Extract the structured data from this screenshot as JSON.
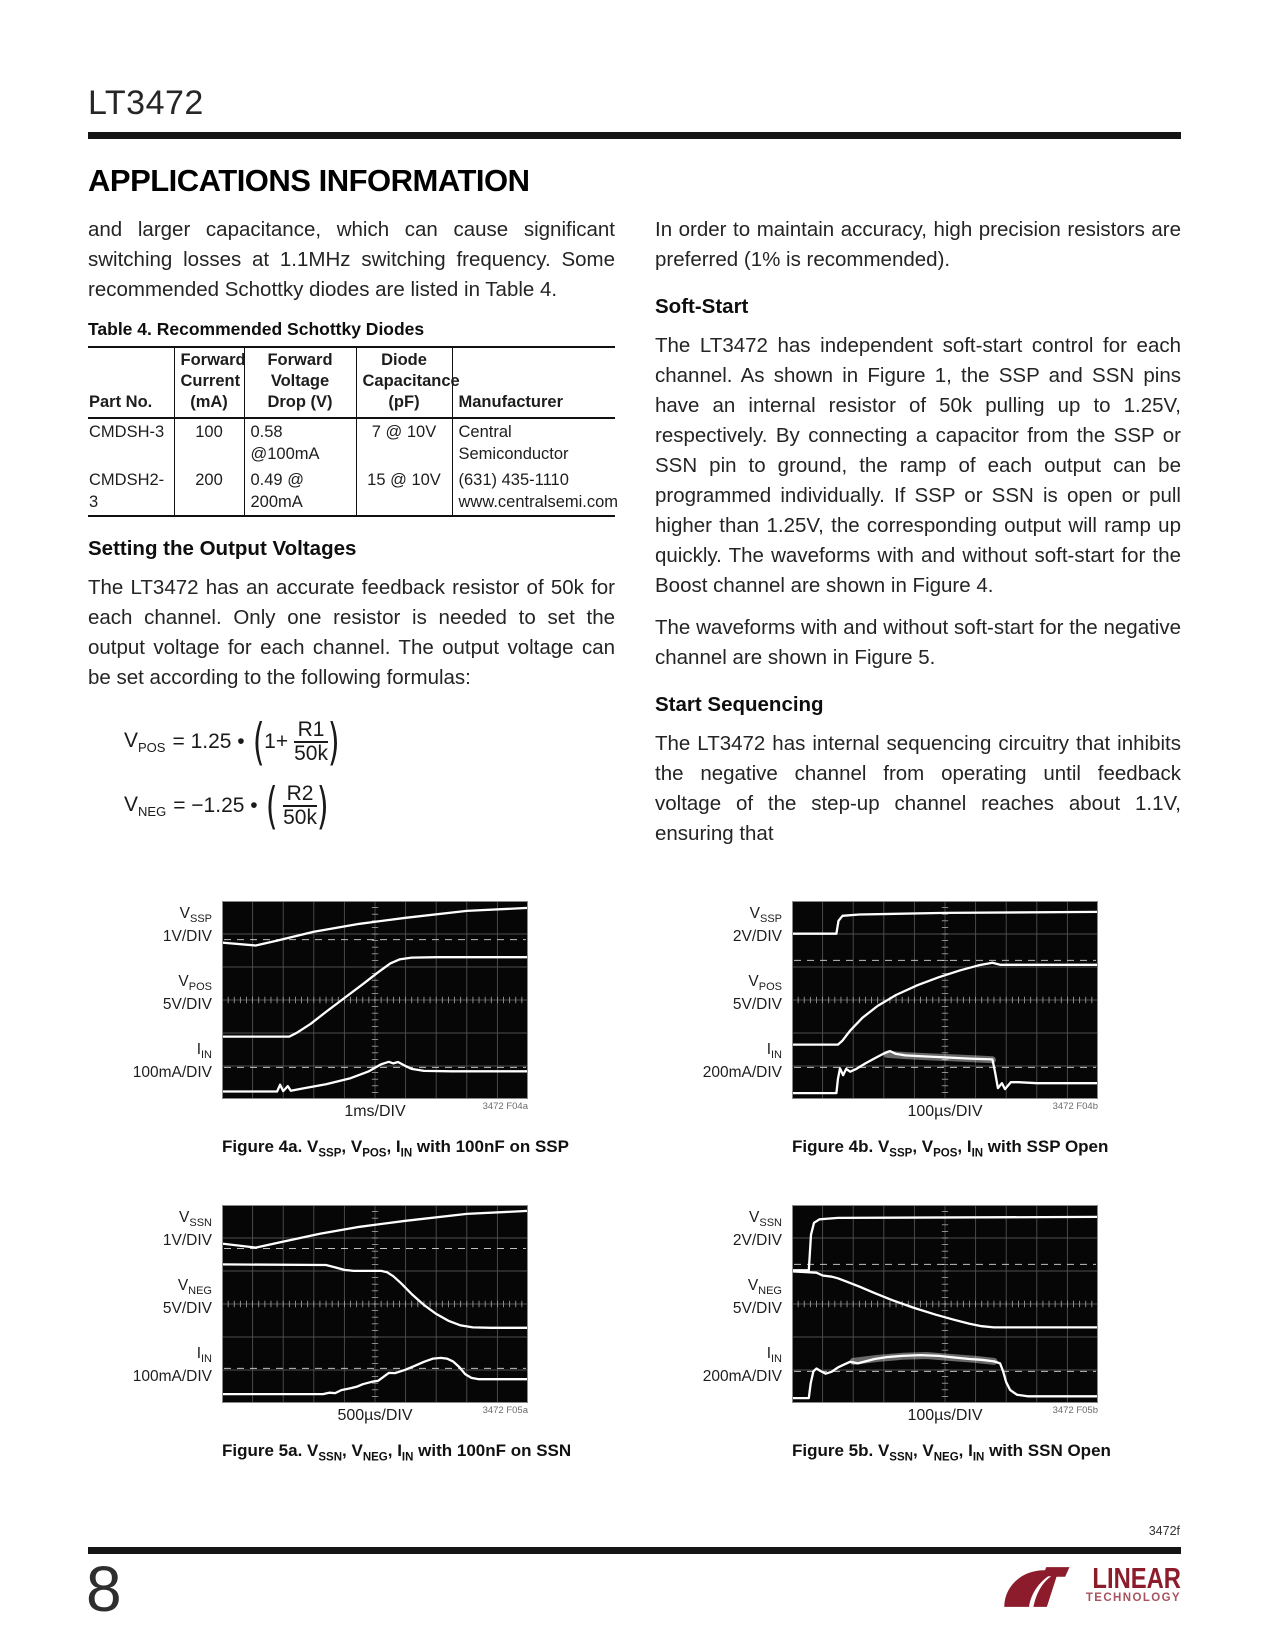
{
  "page": {
    "part_number": "LT3472",
    "section_title": "APPLICATIONS INFORMATION",
    "page_number": "8",
    "doc_code": "3472f",
    "logo": {
      "brand": "LINEAR",
      "sub": "TECHNOLOGY",
      "color": "#8c1c2c"
    }
  },
  "left_column": {
    "para1": "and larger capacitance, which can cause significant switching losses at 1.1MHz switching frequency. Some recommended Schottky diodes are listed in Table 4.",
    "table": {
      "title": "Table 4. Recommended Schottky Diodes",
      "headers": [
        "Part No.",
        "Forward\nCurrent\n(mA)",
        "Forward\nVoltage\nDrop (V)",
        "Diode\nCapacitance\n(pF)",
        "Manufacturer"
      ],
      "rows": [
        [
          "CMDSH-3",
          "100",
          "0.58 @100mA",
          "7 @ 10V",
          "Central Semiconductor"
        ],
        [
          "CMDSH2-3",
          "200",
          "0.49 @ 200mA",
          "15 @ 10V",
          "(631) 435-1110\nwww.centralsemi.com"
        ]
      ]
    },
    "heading2": "Setting the Output Voltages",
    "para2": "The LT3472 has an accurate feedback resistor of 50k for each channel. Only one resistor is needed to set the output voltage for each channel. The output voltage can be set according to the following formulas:",
    "formulas": {
      "vpos": {
        "base": "V",
        "sub": "POS",
        "mid": "= 1.25 •",
        "inner_pre": "1+",
        "num": "R1",
        "den": "50k"
      },
      "vneg": {
        "base": "V",
        "sub": "NEG",
        "mid": "= −1.25 •",
        "inner_pre": "",
        "num": "R2",
        "den": "50k"
      }
    }
  },
  "right_column": {
    "para1": "In order to maintain accuracy, high precision resistors are preferred (1% is recommended).",
    "heading1": "Soft-Start",
    "para2": "The LT3472 has independent soft-start control for each channel. As shown in Figure 1, the SSP and SSN pins have an internal resistor of 50k pulling up to 1.25V, respectively. By connecting a capacitor from the SSP or SSN pin to ground, the ramp of each output can be programmed individually. If SSP or SSN is open or pull higher than 1.25V, the corresponding output will ramp up quickly. The waveforms with and without soft-start for the Boost channel are shown in Figure 4.",
    "para3": "The waveforms with and without soft-start for the negative channel are shown in Figure 5.",
    "heading2": "Start Sequencing",
    "para4": "The LT3472 has internal sequencing circuitry that inhibits the negative channel from operating until feedback voltage of the step-up channel reaches about 1.1V, ensuring that"
  },
  "figures": [
    {
      "id": "4a",
      "tag": "3472 F04a",
      "caption": [
        {
          "t": "Figure 4a. V"
        },
        {
          "sub": "SSP"
        },
        {
          "t": ", V"
        },
        {
          "sub": "POS"
        },
        {
          "t": ", I"
        },
        {
          "sub": "IN"
        },
        {
          "t": " with 100nF on SSP"
        }
      ]
    },
    {
      "id": "4b",
      "tag": "3472 F04b",
      "caption": [
        {
          "t": "Figure 4b. V"
        },
        {
          "sub": "SSP"
        },
        {
          "t": ", V"
        },
        {
          "sub": "POS"
        },
        {
          "t": ", I"
        },
        {
          "sub": "IN"
        },
        {
          "t": " with SSP Open"
        }
      ]
    },
    {
      "id": "5a",
      "tag": "3472 F05a",
      "caption": [
        {
          "t": "Figure 5a. V"
        },
        {
          "sub": "SSN"
        },
        {
          "t": ", V"
        },
        {
          "sub": "NEG"
        },
        {
          "t": ", I"
        },
        {
          "sub": "IN"
        },
        {
          "t": " with 100nF on SSN"
        }
      ]
    },
    {
      "id": "5b",
      "tag": "3472 F05b",
      "caption": [
        {
          "t": "Figure 5b. V"
        },
        {
          "sub": "SSN"
        },
        {
          "t": ", V"
        },
        {
          "sub": "NEG"
        },
        {
          "t": ", I"
        },
        {
          "sub": "IN"
        },
        {
          "t": " with SSN Open"
        }
      ]
    }
  ],
  "chart_data": [
    {
      "id": "4a",
      "type": "line",
      "x_label": "1ms/DIV",
      "dashed_refs": [
        19.5,
        84
      ],
      "series": [
        {
          "base": "V",
          "sub": "SSP",
          "scale": "1V/DIV",
          "points": [
            [
              0,
              21
            ],
            [
              11,
              22.5
            ],
            [
              18,
              20
            ],
            [
              30,
              15.5
            ],
            [
              45,
              11.5
            ],
            [
              60,
              8.5
            ],
            [
              80,
              5
            ],
            [
              100,
              3.5
            ]
          ]
        },
        {
          "base": "V",
          "sub": "POS",
          "scale": "5V/DIV",
          "points": [
            [
              0,
              68.5
            ],
            [
              22,
              68.5
            ],
            [
              24.5,
              66.5
            ],
            [
              29,
              62
            ],
            [
              34,
              56
            ],
            [
              40,
              49
            ],
            [
              46,
              42
            ],
            [
              51,
              36
            ],
            [
              55,
              31.5
            ],
            [
              58,
              29.5
            ],
            [
              62,
              28.6
            ],
            [
              70,
              28.4
            ],
            [
              100,
              28.4
            ]
          ]
        },
        {
          "base": "I",
          "sub": "IN",
          "scale": "100mA/DIV",
          "points": [
            [
              0,
              96.2
            ],
            [
              18,
              96.2
            ],
            [
              19,
              92.8
            ],
            [
              20,
              96
            ],
            [
              21.5,
              93.5
            ],
            [
              22.5,
              95.8
            ],
            [
              27,
              94.5
            ],
            [
              34,
              92.5
            ],
            [
              42,
              89.5
            ],
            [
              48,
              86
            ],
            [
              52,
              82.5
            ],
            [
              54.5,
              81.2
            ],
            [
              56,
              82
            ],
            [
              57.5,
              81.3
            ],
            [
              59.5,
              83
            ],
            [
              62,
              84.8
            ],
            [
              66,
              85.8
            ],
            [
              75,
              86
            ],
            [
              100,
              86
            ]
          ]
        }
      ]
    },
    {
      "id": "4b",
      "type": "line",
      "x_label": "100µs/DIV",
      "dashed_refs": [
        30,
        84
      ],
      "series": [
        {
          "base": "V",
          "sub": "SSP",
          "scale": "2V/DIV",
          "points": [
            [
              0,
              16.5
            ],
            [
              14.5,
              16.5
            ],
            [
              15.2,
              10
            ],
            [
              16.5,
              7.5
            ],
            [
              22,
              6.8
            ],
            [
              50,
              6
            ],
            [
              100,
              5.5
            ]
          ]
        },
        {
          "base": "V",
          "sub": "POS",
          "scale": "5V/DIV",
          "points": [
            [
              0,
              72.5
            ],
            [
              15,
              72.5
            ],
            [
              16.5,
              70.5
            ],
            [
              19,
              65.5
            ],
            [
              23,
              59
            ],
            [
              28,
              53
            ],
            [
              34,
              47.5
            ],
            [
              41,
              42.5
            ],
            [
              48,
              38.5
            ],
            [
              55,
              35
            ],
            [
              61,
              32.5
            ],
            [
              65.5,
              31.2
            ],
            [
              68,
              32.2
            ],
            [
              100,
              32.2
            ]
          ]
        },
        {
          "base": "I",
          "sub": "IN",
          "scale": "200mA/DIV",
          "points": [
            [
              0,
              97
            ],
            [
              14.5,
              97
            ],
            [
              15,
              90
            ],
            [
              15.7,
              84.5
            ],
            [
              16.7,
              88
            ],
            [
              17.7,
              84.8
            ],
            [
              19,
              86.2
            ],
            [
              21,
              84.8
            ],
            [
              24,
              82
            ],
            [
              27,
              79.5
            ],
            [
              30,
              77
            ],
            [
              32,
              75.8
            ],
            [
              34,
              77.2
            ],
            [
              37,
              78
            ],
            [
              43,
              78.5
            ],
            [
              50,
              79
            ],
            [
              58,
              79.6
            ],
            [
              65.5,
              80
            ],
            [
              66.3,
              86
            ],
            [
              67.3,
              94.5
            ],
            [
              68.6,
              92
            ],
            [
              69.6,
              95
            ],
            [
              71.5,
              91.5
            ],
            [
              74,
              91.5
            ],
            [
              80,
              92
            ],
            [
              100,
              92
            ]
          ],
          "band": [
            [
              31,
              77.4
            ],
            [
              38,
              78.2
            ],
            [
              46,
              78.8
            ],
            [
              54,
              79.3
            ],
            [
              61,
              79.8
            ],
            [
              65.5,
              80.2
            ]
          ]
        }
      ]
    },
    {
      "id": "5a",
      "type": "line",
      "x_label": "500µs/DIV",
      "dashed_refs": [
        22,
        82.5
      ],
      "series": [
        {
          "base": "V",
          "sub": "SSN",
          "scale": "1V/DIV",
          "points": [
            [
              0,
              19.5
            ],
            [
              11,
              21.5
            ],
            [
              20,
              18.5
            ],
            [
              32,
              14.5
            ],
            [
              45,
              11
            ],
            [
              60,
              8
            ],
            [
              80,
              4.5
            ],
            [
              100,
              3
            ]
          ]
        },
        {
          "base": "V",
          "sub": "NEG",
          "scale": "5V/DIV",
          "points": [
            [
              0,
              30
            ],
            [
              34,
              30.3
            ],
            [
              37,
              31.5
            ],
            [
              40,
              32.8
            ],
            [
              43,
              33.3
            ],
            [
              52,
              33.3
            ],
            [
              54,
              34
            ],
            [
              56,
              36
            ],
            [
              58.5,
              39.5
            ],
            [
              62,
              45
            ],
            [
              66,
              50.5
            ],
            [
              70,
              55
            ],
            [
              74,
              58.5
            ],
            [
              78,
              60.8
            ],
            [
              82,
              61.8
            ],
            [
              88,
              62
            ],
            [
              100,
              62
            ]
          ]
        },
        {
          "base": "I",
          "sub": "IN",
          "scale": "100mA/DIV",
          "points": [
            [
              0,
              95.5
            ],
            [
              33,
              95.5
            ],
            [
              35,
              94.8
            ],
            [
              37,
              95
            ],
            [
              39,
              93.5
            ],
            [
              42,
              92.5
            ],
            [
              44,
              91.8
            ],
            [
              46,
              90.5
            ],
            [
              49,
              89.3
            ],
            [
              51,
              88.8
            ],
            [
              53,
              86.5
            ],
            [
              54.5,
              84.8
            ],
            [
              56.5,
              84.9
            ],
            [
              58,
              84.2
            ],
            [
              60,
              83.2
            ],
            [
              63,
              81.2
            ],
            [
              66,
              79.2
            ],
            [
              69,
              77.6
            ],
            [
              71.5,
              77.2
            ],
            [
              73.5,
              77.6
            ],
            [
              75.5,
              79
            ],
            [
              77.5,
              81.8
            ],
            [
              79.5,
              85.5
            ],
            [
              81.5,
              87.3
            ],
            [
              84,
              88
            ],
            [
              100,
              88
            ]
          ]
        }
      ]
    },
    {
      "id": "5b",
      "type": "line",
      "x_label": "100µs/DIV",
      "dashed_refs": [
        30,
        84
      ],
      "series": [
        {
          "base": "V",
          "sub": "SSN",
          "scale": "2V/DIV",
          "points": [
            [
              0,
              33
            ],
            [
              5.5,
              33
            ],
            [
              6.2,
              15
            ],
            [
              7.2,
              9
            ],
            [
              9,
              7.2
            ],
            [
              15,
              6.5
            ],
            [
              100,
              6
            ]
          ]
        },
        {
          "base": "V",
          "sub": "NEG",
          "scale": "5V/DIV",
          "points": [
            [
              0,
              33.5
            ],
            [
              8,
              34.2
            ],
            [
              10,
              35.6
            ],
            [
              13,
              36.2
            ],
            [
              15,
              37
            ],
            [
              18,
              38.8
            ],
            [
              22,
              41.2
            ],
            [
              27,
              44.5
            ],
            [
              33,
              48.2
            ],
            [
              40,
              52
            ],
            [
              47,
              55.4
            ],
            [
              53,
              58
            ],
            [
              58,
              60
            ],
            [
              62,
              61.2
            ],
            [
              66,
              61.8
            ],
            [
              100,
              61.8
            ]
          ]
        },
        {
          "base": "I",
          "sub": "IN",
          "scale": "200mA/DIV",
          "points": [
            [
              0,
              97.5
            ],
            [
              5.5,
              97.5
            ],
            [
              6.1,
              90
            ],
            [
              7,
              84
            ],
            [
              8,
              82.6
            ],
            [
              9.2,
              83.8
            ],
            [
              11,
              85.2
            ],
            [
              13,
              84.2
            ],
            [
              15,
              82
            ],
            [
              17,
              80.6
            ],
            [
              19,
              79.2
            ],
            [
              21.5,
              80
            ],
            [
              24,
              79
            ],
            [
              27,
              77.8
            ],
            [
              31,
              76.8
            ],
            [
              36,
              76.2
            ],
            [
              42,
              75.8
            ],
            [
              48,
              76.2
            ],
            [
              53,
              77
            ],
            [
              58,
              77.8
            ],
            [
              62,
              78.2
            ],
            [
              66,
              79
            ],
            [
              68,
              80
            ],
            [
              69,
              84
            ],
            [
              70,
              89.5
            ],
            [
              71.3,
              93.5
            ],
            [
              73.5,
              95.8
            ],
            [
              77,
              96.6
            ],
            [
              82,
              96.6
            ],
            [
              100,
              96.6
            ]
          ],
          "band": [
            [
              20,
              79
            ],
            [
              28,
              77.5
            ],
            [
              36,
              76.4
            ],
            [
              44,
              76
            ],
            [
              52,
              77
            ],
            [
              60,
              78
            ],
            [
              66,
              79
            ]
          ]
        }
      ]
    }
  ]
}
